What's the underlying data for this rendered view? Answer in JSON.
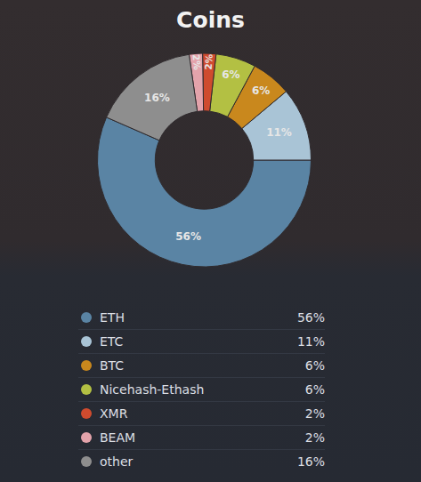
{
  "chart_data": {
    "type": "pie",
    "title": "Coins",
    "categories": [
      "ETH",
      "ETC",
      "BTC",
      "Nicehash-Ethash",
      "XMR",
      "BEAM",
      "other"
    ],
    "values": [
      56,
      11,
      6,
      6,
      2,
      2,
      16
    ],
    "value_labels": [
      "56%",
      "11%",
      "6%",
      "6%",
      "2%",
      "2%",
      "16%"
    ],
    "colors": [
      "#5a84a4",
      "#a9c4d6",
      "#c9881d",
      "#b3c043",
      "#cf4b2e",
      "#e3a3ab",
      "#8e8e8e"
    ],
    "data_labels": true,
    "legend": "bottom"
  }
}
